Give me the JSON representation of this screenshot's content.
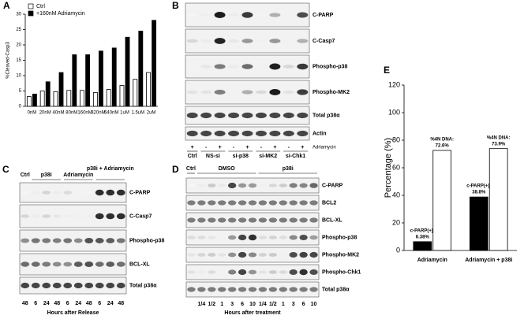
{
  "chart_data": [
    {
      "type": "bar",
      "label": "A",
      "ylabel": "%Cleaved-Casp3",
      "categories": [
        "0nM",
        "20nM",
        "40nM",
        "80nM",
        "160nM",
        "320nM",
        "640nM",
        "1uM",
        "1.5uM",
        "2uM"
      ],
      "series": [
        {
          "name": "Ctrl",
          "color": "#ffffff",
          "values": [
            3.2,
            5,
            4.8,
            5.2,
            5.2,
            4.5,
            5.5,
            6.8,
            8.8,
            11
          ]
        },
        {
          "name": "+160nM Adriamycin",
          "color": "#000000",
          "values": [
            4,
            8,
            11,
            16.8,
            16.8,
            18,
            19,
            22.5,
            24.5,
            28
          ]
        }
      ],
      "ylim": [
        0,
        30
      ],
      "yticks": [
        0,
        5,
        10,
        15,
        20,
        25,
        30
      ],
      "legend": "upper left"
    },
    {
      "type": "bar",
      "label": "E",
      "ylabel": "Percentage (%)",
      "categories": [
        "Adriamycin",
        "Adriamycin + p38i"
      ],
      "series": [
        {
          "name": "c-PARP(+):",
          "color": "#000000",
          "values": [
            6.38,
            38.8
          ],
          "value_labels": [
            "6.38%",
            "38.8%"
          ]
        },
        {
          "name": "%4N DNA:",
          "color": "#ffffff",
          "values": [
            72.6,
            73.9
          ],
          "value_labels": [
            "72.6%",
            "73.9%"
          ]
        }
      ],
      "ylim": [
        0,
        120
      ],
      "yticks": [
        0,
        20,
        40,
        60,
        80,
        100,
        120
      ]
    }
  ],
  "panels": {
    "B": {
      "label": "B",
      "rows": [
        "C-PARP",
        "C-Casp7",
        "Phospho-p38",
        "Phospho-MK2",
        "Total p38α",
        "Actin"
      ],
      "lanes": [
        "+",
        "-",
        "+",
        "-",
        "+",
        "-",
        "+",
        "-",
        "+"
      ],
      "treatment": "Adriamycin",
      "groups": [
        "Ctrl",
        "NS-si",
        "si-p38",
        "si-MK2",
        "si-Chk1"
      ]
    },
    "C": {
      "label": "C",
      "headers": [
        "Ctrl",
        "p38i",
        "Adriamycin",
        "p38i + Adriamycin"
      ],
      "rows": [
        "C-PARP",
        "C-Casp7",
        "Phospho-p38",
        "BCL-XL",
        "Total p38α"
      ],
      "lanes": [
        "48",
        "6",
        "24",
        "48",
        "6",
        "24",
        "48",
        "6",
        "24",
        "48"
      ],
      "xlabel": "Hours after Release"
    },
    "D": {
      "label": "D",
      "headers": [
        "Ctrl",
        "DMSO",
        "p38i"
      ],
      "rows": [
        "C-PARP",
        "BCL2",
        "BCL-XL",
        "Phospho-p38",
        "Phospho-MK2",
        "Phospho-Chk1",
        "Total p38α"
      ],
      "lanes": [
        "1/4",
        "1/2",
        "1",
        "3",
        "6",
        "10",
        "1/4",
        "1/2",
        "1",
        "3",
        "6",
        "10"
      ],
      "xlabel": "Hours after treatment"
    }
  }
}
